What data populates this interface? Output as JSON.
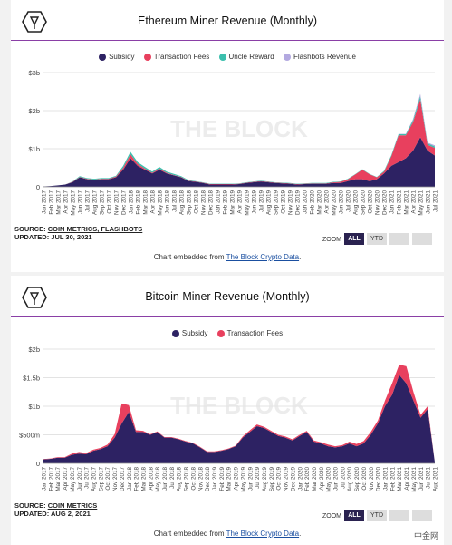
{
  "charts": [
    {
      "title": "Ethereum Miner Revenue (Monthly)",
      "legend": [
        {
          "label": "Subsidy",
          "color": "#2d2263"
        },
        {
          "label": "Transaction Fees",
          "color": "#e8405e"
        },
        {
          "label": "Uncle Reward",
          "color": "#3bbfad"
        },
        {
          "label": "Flashbots Revenue",
          "color": "#b3a9e0"
        }
      ],
      "watermark": "THE BLOCK",
      "source_label": "SOURCE:",
      "source_value": "COIN METRICS, FLASHBOTS",
      "updated_label": "UPDATED:",
      "updated_value": "JUL 30, 2021",
      "zoom_label": "ZOOM",
      "zoom_buttons": [
        "ALL",
        "YTD",
        "",
        ""
      ],
      "embed_prefix": "Chart embedded from",
      "embed_link": "The Block Crypto Data",
      "embed_suffix": "."
    },
    {
      "title": "Bitcoin Miner Revenue (Monthly)",
      "legend": [
        {
          "label": "Subsidy",
          "color": "#2d2263"
        },
        {
          "label": "Transaction Fees",
          "color": "#e8405e"
        }
      ],
      "watermark": "THE BLOCK",
      "source_label": "SOURCE:",
      "source_value": "COIN METRICS",
      "updated_label": "UPDATED:",
      "updated_value": "AUG 2, 2021",
      "zoom_label": "ZOOM",
      "zoom_buttons": [
        "ALL",
        "YTD",
        "",
        ""
      ],
      "embed_prefix": "Chart embedded from",
      "embed_link": "The Block Crypto Data",
      "embed_suffix": "."
    }
  ],
  "site_watermark": "中金网",
  "chart_data": [
    {
      "type": "area",
      "stacked": true,
      "title": "Ethereum Miner Revenue (Monthly)",
      "ylim": [
        0,
        3
      ],
      "y_ticks": [
        0,
        1,
        2,
        3
      ],
      "y_tick_labels": [
        "0",
        "$1b",
        "$2b",
        "$3b"
      ],
      "x": [
        "Jan 2017",
        "Feb 2017",
        "Mar 2017",
        "Apr 2017",
        "May 2017",
        "Jun 2017",
        "Jul 2017",
        "Aug 2017",
        "Sep 2017",
        "Oct 2017",
        "Nov 2017",
        "Dec 2017",
        "Jan 2018",
        "Feb 2018",
        "Mar 2018",
        "Apr 2018",
        "May 2018",
        "Jun 2018",
        "Jul 2018",
        "Aug 2018",
        "Sep 2018",
        "Oct 2018",
        "Nov 2018",
        "Dec 2018",
        "Jan 2019",
        "Feb 2019",
        "Mar 2019",
        "Apr 2019",
        "May 2019",
        "Jun 2019",
        "Jul 2019",
        "Aug 2019",
        "Sep 2019",
        "Oct 2019",
        "Nov 2019",
        "Dec 2019",
        "Jan 2020",
        "Feb 2020",
        "Mar 2020",
        "Apr 2020",
        "May 2020",
        "Jun 2020",
        "Jul 2020",
        "Aug 2020",
        "Sep 2020",
        "Oct 2020",
        "Nov 2020",
        "Dec 2020",
        "Jan 2021",
        "Feb 2021",
        "Mar 2021",
        "Apr 2021",
        "May 2021",
        "Jun 2021",
        "Jul 2021"
      ],
      "x_tick_labels": [
        "Jan 2017",
        "Feb 2017",
        "Mar 2017",
        "Apr 2017",
        "May 2017",
        "Jun 2017",
        "Jul 2017",
        "Aug 2017",
        "Sep 2017",
        "Oct 2017",
        "Nov 2017",
        "Dec 2017",
        "Jan 2018",
        "Feb 2018",
        "Mar 2018",
        "Apr 2018",
        "May 2018",
        "Jun 2018",
        "Jul 2018",
        "Aug 2018",
        "Sep 2018",
        "Oct 2018",
        "Nov 2018",
        "Dec 2018",
        "Jan 2019",
        "Feb 2019",
        "Mar 2019",
        "Apr 2019",
        "May 2019",
        "Jun 2019",
        "Jul 2019",
        "Aug 2019",
        "Sep 2019",
        "Oct 2019",
        "Nov 2019",
        "Dec 2019",
        "Jan 2020",
        "Feb 2020",
        "Mar 2020",
        "Apr 2020",
        "May 2020",
        "Jun 2020",
        "Jul 2020",
        "Aug 2020",
        "Sep 2020",
        "Oct 2020",
        "Nov 2020",
        "Dec 2020",
        "Jan 2021",
        "Feb 2021",
        "Mar 2021",
        "Apr 2021",
        "May 2021",
        "Jun 2021",
        "Jul 2021"
      ],
      "series": [
        {
          "name": "Subsidy",
          "color": "#2d2263",
          "values": [
            0.01,
            0.02,
            0.04,
            0.06,
            0.12,
            0.25,
            0.2,
            0.18,
            0.2,
            0.2,
            0.25,
            0.45,
            0.75,
            0.55,
            0.45,
            0.35,
            0.45,
            0.35,
            0.3,
            0.25,
            0.15,
            0.13,
            0.1,
            0.06,
            0.06,
            0.06,
            0.06,
            0.07,
            0.1,
            0.12,
            0.14,
            0.12,
            0.1,
            0.09,
            0.08,
            0.06,
            0.07,
            0.08,
            0.08,
            0.08,
            0.1,
            0.1,
            0.15,
            0.2,
            0.2,
            0.15,
            0.2,
            0.35,
            0.55,
            0.65,
            0.75,
            0.95,
            1.3,
            0.95,
            0.82
          ]
        },
        {
          "name": "Transaction Fees",
          "color": "#e8405e",
          "values": [
            0,
            0,
            0,
            0,
            0.01,
            0.01,
            0.01,
            0.01,
            0.01,
            0.01,
            0.02,
            0.05,
            0.1,
            0.05,
            0.03,
            0.02,
            0.03,
            0.02,
            0.01,
            0.01,
            0.01,
            0.01,
            0.01,
            0.01,
            0.01,
            0.01,
            0.01,
            0.01,
            0.01,
            0.01,
            0.01,
            0.01,
            0.01,
            0.01,
            0.01,
            0.01,
            0.01,
            0.01,
            0.01,
            0.01,
            0.02,
            0.03,
            0.05,
            0.12,
            0.25,
            0.18,
            0.05,
            0.05,
            0.25,
            0.7,
            0.6,
            0.75,
            1.0,
            0.15,
            0.2
          ]
        },
        {
          "name": "Uncle Reward",
          "color": "#3bbfad",
          "values": [
            0,
            0,
            0,
            0,
            0.01,
            0.02,
            0.02,
            0.02,
            0.02,
            0.02,
            0.02,
            0.05,
            0.07,
            0.05,
            0.04,
            0.03,
            0.04,
            0.03,
            0.03,
            0.02,
            0.02,
            0.01,
            0.01,
            0.01,
            0.01,
            0.01,
            0.01,
            0.01,
            0.01,
            0.01,
            0.01,
            0.01,
            0.01,
            0.01,
            0.01,
            0.01,
            0.01,
            0.01,
            0.01,
            0.01,
            0.01,
            0.01,
            0.01,
            0.01,
            0.01,
            0.01,
            0.01,
            0.02,
            0.03,
            0.03,
            0.03,
            0.05,
            0.08,
            0.04,
            0.04
          ]
        },
        {
          "name": "Flashbots Revenue",
          "color": "#b3a9e0",
          "values": [
            0,
            0,
            0,
            0,
            0,
            0,
            0,
            0,
            0,
            0,
            0,
            0,
            0,
            0,
            0,
            0,
            0,
            0,
            0,
            0,
            0,
            0,
            0,
            0,
            0,
            0,
            0,
            0,
            0,
            0,
            0,
            0,
            0,
            0,
            0,
            0,
            0,
            0,
            0,
            0,
            0,
            0,
            0,
            0,
            0,
            0,
            0,
            0,
            0,
            0.01,
            0.01,
            0.03,
            0.06,
            0.02,
            0.03
          ]
        }
      ],
      "grid": true,
      "legend_position": "top"
    },
    {
      "type": "area",
      "stacked": true,
      "title": "Bitcoin Miner Revenue (Monthly)",
      "ylim": [
        0,
        2
      ],
      "y_ticks": [
        0,
        0.5,
        1,
        1.5,
        2
      ],
      "y_tick_labels": [
        "0",
        "$500m",
        "$1b",
        "$1.5b",
        "$2b"
      ],
      "x": [
        "Jan 2017",
        "Feb 2017",
        "Mar 2017",
        "Apr 2017",
        "May 2017",
        "Jun 2017",
        "Jul 2017",
        "Aug 2017",
        "Sep 2017",
        "Oct 2017",
        "Nov 2017",
        "Dec 2017",
        "Jan 2018",
        "Feb 2018",
        "Mar 2018",
        "Apr 2018",
        "May 2018",
        "Jun 2018",
        "Jul 2018",
        "Aug 2018",
        "Sep 2018",
        "Oct 2018",
        "Nov 2018",
        "Dec 2018",
        "Jan 2019",
        "Feb 2019",
        "Mar 2019",
        "Apr 2019",
        "May 2019",
        "Jun 2019",
        "Jul 2019",
        "Aug 2019",
        "Sep 2019",
        "Oct 2019",
        "Nov 2019",
        "Dec 2019",
        "Jan 2020",
        "Feb 2020",
        "Mar 2020",
        "Apr 2020",
        "May 2020",
        "Jun 2020",
        "Jul 2020",
        "Aug 2020",
        "Sep 2020",
        "Oct 2020",
        "Nov 2020",
        "Dec 2020",
        "Jan 2021",
        "Feb 2021",
        "Mar 2021",
        "Apr 2021",
        "May 2021",
        "Jun 2021",
        "Jul 2021",
        "Aug 2021"
      ],
      "x_tick_labels": [
        "Jan 2017",
        "Feb 2017",
        "Mar 2017",
        "Apr 2017",
        "May 2017",
        "Jun 2017",
        "Jul 2017",
        "Aug 2017",
        "Sep 2017",
        "Oct 2017",
        "Nov 2017",
        "Dec 2017",
        "Jan 2018",
        "Feb 2018",
        "Mar 2018",
        "Apr 2018",
        "May 2018",
        "Jun 2018",
        "Jul 2018",
        "Aug 2018",
        "Sep 2018",
        "Oct 2018",
        "Nov 2018",
        "Dec 2018",
        "Jan 2019",
        "Feb 2019",
        "Mar 2019",
        "Apr 2019",
        "May 2019",
        "Jun 2019",
        "Jul 2019",
        "Aug 2019",
        "Sep 2019",
        "Oct 2019",
        "Nov 2019",
        "Dec 2019",
        "Jan 2020",
        "Feb 2020",
        "Mar 2020",
        "Apr 2020",
        "May 2020",
        "Jun 2020",
        "Jul 2020",
        "Aug 2020",
        "Sep 2020",
        "Oct 2020",
        "Nov 2020",
        "Dec 2020",
        "Jan 2021",
        "Feb 2021",
        "Mar 2021",
        "Apr 2021",
        "May 2021",
        "Jun 2021",
        "Jul 2021",
        "Aug 2021"
      ],
      "series": [
        {
          "name": "Subsidy",
          "color": "#2d2263",
          "values": [
            0.07,
            0.08,
            0.1,
            0.1,
            0.15,
            0.17,
            0.16,
            0.22,
            0.25,
            0.3,
            0.45,
            0.7,
            0.9,
            0.55,
            0.55,
            0.5,
            0.55,
            0.45,
            0.45,
            0.42,
            0.38,
            0.35,
            0.28,
            0.2,
            0.2,
            0.22,
            0.25,
            0.3,
            0.45,
            0.55,
            0.65,
            0.62,
            0.55,
            0.48,
            0.45,
            0.4,
            0.48,
            0.55,
            0.38,
            0.35,
            0.3,
            0.28,
            0.3,
            0.35,
            0.3,
            0.35,
            0.5,
            0.7,
            1.0,
            1.2,
            1.55,
            1.4,
            1.1,
            0.8,
            0.95,
            0.02
          ]
        },
        {
          "name": "Transaction Fees",
          "color": "#e8405e",
          "values": [
            0.005,
            0.005,
            0.01,
            0.01,
            0.02,
            0.03,
            0.02,
            0.02,
            0.02,
            0.03,
            0.06,
            0.35,
            0.12,
            0.03,
            0.02,
            0.01,
            0.01,
            0.01,
            0.01,
            0.01,
            0.01,
            0.01,
            0.01,
            0.01,
            0.01,
            0.01,
            0.01,
            0.01,
            0.02,
            0.03,
            0.03,
            0.02,
            0.02,
            0.02,
            0.02,
            0.02,
            0.02,
            0.02,
            0.02,
            0.02,
            0.03,
            0.02,
            0.02,
            0.03,
            0.04,
            0.04,
            0.05,
            0.05,
            0.1,
            0.2,
            0.18,
            0.3,
            0.15,
            0.05,
            0.05,
            0.0
          ]
        }
      ],
      "grid": true,
      "legend_position": "top"
    }
  ]
}
